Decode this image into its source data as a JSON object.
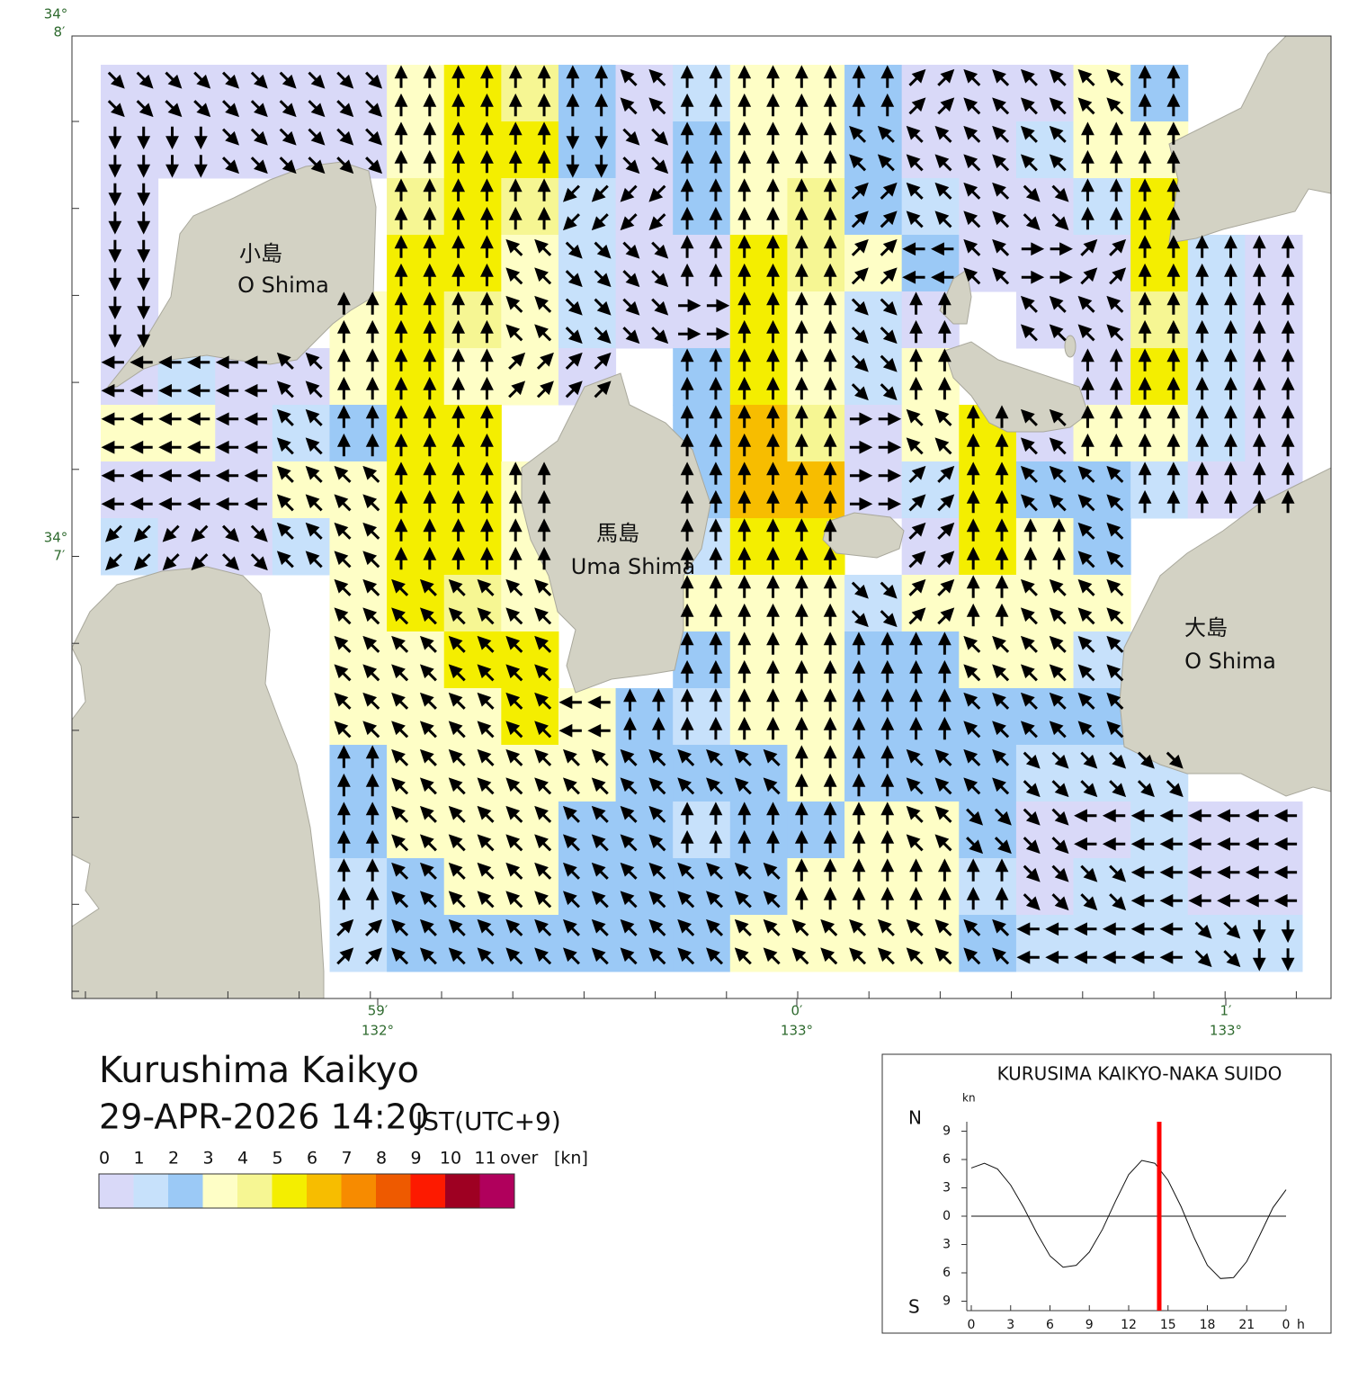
{
  "title": "Kurushima Kaikyo",
  "datetime": "29-APR-2026 14:20",
  "timezone": "JST(UTC+9)",
  "map": {
    "lat_labels": [
      {
        "deg": "34°",
        "min": "8′"
      },
      {
        "deg": "34°",
        "min": "7′"
      }
    ],
    "lon_labels": [
      {
        "min": "59′",
        "deg": "132°"
      },
      {
        "min": "0′",
        "deg": "133°"
      },
      {
        "min": "1′",
        "deg": "133°"
      }
    ],
    "places": [
      {
        "name": "小島",
        "romaji": "O Shima"
      },
      {
        "name": "馬島",
        "romaji": "Uma Shima"
      },
      {
        "name": "大島",
        "romaji": "O Shima"
      }
    ],
    "speed_rows": [
      "0000035420133200032..",
      "0000035520233200133..",
      "0....45410234210015..",
      "0....5531005432000510",
      "0...35431005310.00410",
      "010035330.25313..0510",
      "3301255...26403503310",
      "00033553..26601522100",
      "10013553..155.0532...",
      "....3543..33313333...",
      "....3355..23322331...",
      "....33353213322222...",
      "....233332223222111..",
      "....23332212233200100",
      "....12332222333101100",
      "....12222223333211111"
    ],
    "direction_rows": [
      "3333300007000017770..",
      "4433300043000777700..",
      "4....00055000177300..",
      "4....0073300016721000",
      "4...00073320030.77000",
      "666700011.00030..0000",
      "6667000...00027070000",
      "66677000..00021077000",
      "55377000..000.1007...",
      "....7777..00031077...",
      "....7777..00000777...",
      "....77776000000777...",
      "....077777770077333..",
      "....07777700007336666",
      "....07777777000033666",
      "....17777777777766634"
    ]
  },
  "legend": {
    "labels": [
      "0",
      "1",
      "2",
      "3",
      "4",
      "5",
      "6",
      "7",
      "8",
      "9",
      "10",
      "11"
    ],
    "over": "over",
    "unit": "[kn]",
    "colors": [
      "#d9d9f8",
      "#c7e1fb",
      "#9bc9f6",
      "#fefec6",
      "#f6f693",
      "#f4ee00",
      "#f7bd00",
      "#f78b00",
      "#ee5a00",
      "#fd1a00",
      "#9e0022",
      "#b0005c"
    ]
  },
  "tide": {
    "title": "KURUSIMA KAIKYO-NAKA SUIDO",
    "unit": "kn",
    "north": "N",
    "south": "S",
    "x_unit": "h",
    "hours": [
      0,
      1,
      2,
      3,
      4,
      5,
      6,
      7,
      8,
      9,
      10,
      11,
      12,
      13,
      14,
      15,
      16,
      17,
      18,
      19,
      20,
      21,
      22,
      23,
      24
    ],
    "values": [
      5.1,
      5.6,
      5.0,
      3.3,
      0.9,
      -1.8,
      -4.2,
      -5.4,
      -5.2,
      -3.8,
      -1.4,
      1.6,
      4.4,
      5.9,
      5.6,
      3.8,
      1.0,
      -2.3,
      -5.2,
      -6.6,
      -6.5,
      -4.8,
      -2.0,
      0.9,
      2.8
    ],
    "xlim": [
      0,
      24
    ],
    "ylim": [
      -10,
      10
    ],
    "xticks": [
      0,
      3,
      6,
      9,
      12,
      15,
      18,
      21,
      {
        "value": 24,
        "label": "0"
      }
    ],
    "yticks": [
      9,
      6,
      3,
      0,
      {
        "value": -3,
        "label": "3"
      },
      {
        "value": -6,
        "label": "6"
      },
      {
        "value": -9,
        "label": "9"
      }
    ],
    "current_hour": 14.33,
    "marker_color": "#ff0000"
  }
}
